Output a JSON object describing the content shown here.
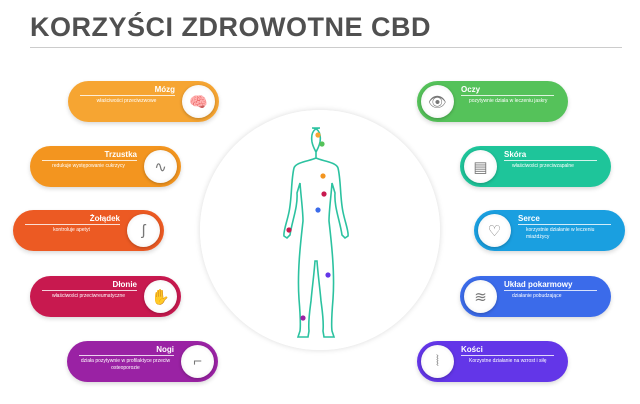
{
  "title": "KORZYŚCI ZDROWOTNE CBD",
  "left": [
    {
      "name": "Mózg",
      "desc": "właściwości przeciwzwowe",
      "color": "#F6A532",
      "icon": "brain-icon"
    },
    {
      "name": "Trzustka",
      "desc": "redukuje występowanie cukrzycy",
      "color": "#F3951F",
      "icon": "pancreas-icon"
    },
    {
      "name": "Żołądek",
      "desc": "kontroluje apetyt",
      "color": "#EC5A23",
      "icon": "stomach-icon"
    },
    {
      "name": "Dłonie",
      "desc": "właściwości przeciwreumatyczne",
      "color": "#C8194F",
      "icon": "hand-icon"
    },
    {
      "name": "Nogi",
      "desc": "działa pozytywnie w profilaktyce przeciw osteoporozie",
      "color": "#9A22A4",
      "icon": "leg-icon"
    }
  ],
  "right": [
    {
      "name": "Oczy",
      "desc": "pozytywnie działa w leczeniu jaskry",
      "color": "#55C25A",
      "icon": "eye-icon"
    },
    {
      "name": "Skóra",
      "desc": "właściwości przeciwzapalne",
      "color": "#1EC59A",
      "icon": "skin-icon"
    },
    {
      "name": "Serce",
      "desc": "korzystnie działanie w leczeniu miażdżycy",
      "color": "#1A9FE0",
      "icon": "heart-icon"
    },
    {
      "name": "Układ pokarmowy",
      "desc": "działanie pobudzające",
      "color": "#3B6BEA",
      "icon": "intestine-icon"
    },
    {
      "name": "Kości",
      "desc": "Korzystne działanie na wzrost i siłę",
      "color": "#6336E8",
      "icon": "bone-icon"
    }
  ]
}
